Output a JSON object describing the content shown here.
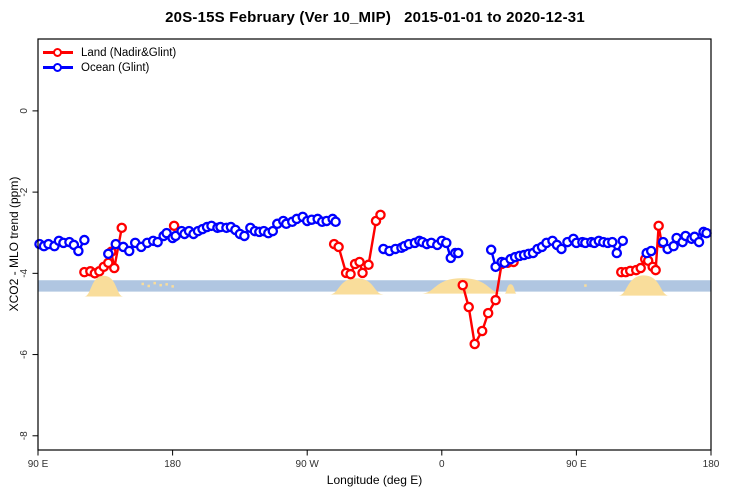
{
  "chart_data": {
    "type": "line",
    "title": "20S-15S February (Ver 10_MIP)   2015-01-01 to 2020-12-31",
    "xlabel": "Longitude (deg E)",
    "ylabel": "XCO2 - MLO trend (ppm)",
    "xlim": [
      90,
      540
    ],
    "ylim": [
      -8.35,
      1.77
    ],
    "grid": false,
    "legend_position": "top-left",
    "x_ticks": [
      {
        "value": 90,
        "label": "90 E"
      },
      {
        "value": 180,
        "label": "180"
      },
      {
        "value": 270,
        "label": "90 W"
      },
      {
        "value": 360,
        "label": "0"
      },
      {
        "value": 450,
        "label": "90 E"
      },
      {
        "value": 540,
        "label": "180"
      }
    ],
    "y_ticks": [
      {
        "value": 0,
        "label": "0"
      },
      {
        "value": -2,
        "label": "-2"
      },
      {
        "value": -4,
        "label": "-4"
      },
      {
        "value": -6,
        "label": "-6"
      },
      {
        "value": -8,
        "label": "-8"
      }
    ],
    "band": {
      "from": -4.17,
      "to": -4.45,
      "color": "#b0c6e1"
    },
    "land_shading": {
      "color": "#f9dd9b",
      "regions": [
        {
          "from": 121,
          "to": 147,
          "peak": -4.06,
          "base": -4.57
        },
        {
          "from": 285,
          "to": 321,
          "peak": -4.12,
          "base": -4.52
        },
        {
          "from": 346,
          "to": 401,
          "peak": -4.12,
          "base": -4.5
        },
        {
          "from": 402,
          "to": 410,
          "peak": -4.27,
          "base": -4.5
        },
        {
          "from": 478,
          "to": 512,
          "peak": -4.05,
          "base": -4.55
        }
      ],
      "speckles": [
        [
          160,
          -4.26
        ],
        [
          164,
          -4.31
        ],
        [
          168,
          -4.24
        ],
        [
          172,
          -4.29
        ],
        [
          176,
          -4.27
        ],
        [
          180,
          -4.32
        ],
        [
          456,
          -4.3
        ]
      ]
    },
    "series": [
      {
        "name": "Land (Nadir&Glint)",
        "color": "#ff0000",
        "marker": "open-circle",
        "segments": [
          [
            [
              121,
              -3.97
            ],
            [
              125,
              -3.95
            ],
            [
              128,
              -4.0
            ],
            [
              131,
              -3.95
            ],
            [
              134,
              -3.84
            ],
            [
              137,
              -3.74
            ],
            [
              139,
              -3.47
            ],
            [
              141,
              -3.87
            ],
            [
              146,
              -2.88
            ]
          ],
          [
            [
              181,
              -2.83
            ]
          ],
          [
            [
              288,
              -3.28
            ],
            [
              291,
              -3.35
            ],
            [
              296,
              -3.99
            ],
            [
              299,
              -4.02
            ],
            [
              302,
              -3.77
            ],
            [
              305,
              -3.72
            ],
            [
              307,
              -3.99
            ],
            [
              311,
              -3.79
            ],
            [
              316,
              -2.71
            ],
            [
              319,
              -2.56
            ]
          ],
          [
            [
              374,
              -4.29
            ],
            [
              378,
              -4.83
            ],
            [
              382,
              -5.74
            ],
            [
              387,
              -5.42
            ],
            [
              391,
              -4.98
            ],
            [
              396,
              -4.66
            ],
            [
              400,
              -3.77
            ],
            [
              404,
              -3.74
            ],
            [
              408,
              -3.72
            ]
          ],
          [
            [
              480,
              -3.97
            ],
            [
              483,
              -3.97
            ],
            [
              486,
              -3.94
            ],
            [
              490,
              -3.92
            ],
            [
              493,
              -3.87
            ],
            [
              496,
              -3.65
            ],
            [
              498,
              -3.69
            ],
            [
              501,
              -3.84
            ],
            [
              503,
              -3.92
            ],
            [
              505,
              -2.83
            ],
            [
              507,
              -3.25
            ]
          ]
        ]
      },
      {
        "name": "Ocean (Glint)",
        "color": "#0000ff",
        "marker": "open-circle",
        "segments": [
          [
            [
              91,
              -3.28
            ],
            [
              94,
              -3.33
            ],
            [
              97,
              -3.28
            ],
            [
              101,
              -3.33
            ],
            [
              104,
              -3.2
            ],
            [
              107,
              -3.25
            ],
            [
              111,
              -3.23
            ],
            [
              114,
              -3.3
            ],
            [
              117,
              -3.45
            ],
            [
              121,
              -3.18
            ]
          ],
          [
            [
              137,
              -3.52
            ],
            [
              142,
              -3.28
            ],
            [
              147,
              -3.35
            ],
            [
              151,
              -3.45
            ],
            [
              155,
              -3.25
            ],
            [
              159,
              -3.35
            ],
            [
              163,
              -3.25
            ],
            [
              167,
              -3.2
            ],
            [
              170,
              -3.23
            ],
            [
              174,
              -3.08
            ],
            [
              176,
              -3.01
            ],
            [
              180,
              -3.13
            ],
            [
              182,
              -3.08
            ],
            [
              186,
              -2.96
            ],
            [
              188,
              -3.03
            ],
            [
              191,
              -2.96
            ],
            [
              194,
              -3.03
            ],
            [
              197,
              -2.96
            ],
            [
              200,
              -2.91
            ],
            [
              203,
              -2.86
            ],
            [
              206,
              -2.83
            ],
            [
              210,
              -2.88
            ],
            [
              212,
              -2.86
            ],
            [
              216,
              -2.88
            ],
            [
              219,
              -2.86
            ],
            [
              222,
              -2.93
            ],
            [
              225,
              -3.03
            ],
            [
              228,
              -3.08
            ],
            [
              232,
              -2.88
            ],
            [
              235,
              -2.96
            ],
            [
              238,
              -2.98
            ],
            [
              241,
              -2.96
            ],
            [
              244,
              -3.01
            ],
            [
              247,
              -2.96
            ],
            [
              250,
              -2.78
            ],
            [
              254,
              -2.71
            ],
            [
              256,
              -2.78
            ],
            [
              260,
              -2.73
            ],
            [
              263,
              -2.66
            ],
            [
              267,
              -2.61
            ],
            [
              270,
              -2.71
            ],
            [
              273,
              -2.68
            ],
            [
              277,
              -2.66
            ],
            [
              280,
              -2.73
            ],
            [
              283,
              -2.71
            ],
            [
              287,
              -2.66
            ],
            [
              289,
              -2.73
            ]
          ],
          [
            [
              321,
              -3.4
            ],
            [
              325,
              -3.45
            ],
            [
              329,
              -3.4
            ],
            [
              333,
              -3.37
            ],
            [
              335,
              -3.33
            ],
            [
              338,
              -3.28
            ],
            [
              342,
              -3.25
            ],
            [
              345,
              -3.2
            ],
            [
              347,
              -3.23
            ],
            [
              350,
              -3.28
            ],
            [
              353,
              -3.25
            ],
            [
              357,
              -3.3
            ],
            [
              360,
              -3.2
            ],
            [
              363,
              -3.25
            ],
            [
              366,
              -3.62
            ],
            [
              369,
              -3.5
            ],
            [
              371,
              -3.5
            ]
          ],
          [
            [
              393,
              -3.42
            ],
            [
              396,
              -3.84
            ],
            [
              400,
              -3.72
            ],
            [
              402,
              -3.74
            ],
            [
              406,
              -3.65
            ],
            [
              409,
              -3.6
            ],
            [
              412,
              -3.57
            ],
            [
              415,
              -3.55
            ],
            [
              418,
              -3.52
            ],
            [
              421,
              -3.5
            ],
            [
              424,
              -3.4
            ],
            [
              427,
              -3.35
            ],
            [
              430,
              -3.25
            ],
            [
              434,
              -3.2
            ],
            [
              437,
              -3.3
            ],
            [
              440,
              -3.4
            ],
            [
              444,
              -3.23
            ],
            [
              448,
              -3.15
            ],
            [
              450,
              -3.25
            ],
            [
              454,
              -3.23
            ],
            [
              456,
              -3.25
            ],
            [
              460,
              -3.23
            ],
            [
              462,
              -3.25
            ],
            [
              465,
              -3.2
            ],
            [
              468,
              -3.23
            ],
            [
              471,
              -3.25
            ],
            [
              474,
              -3.23
            ],
            [
              477,
              -3.5
            ],
            [
              481,
              -3.2
            ]
          ],
          [
            [
              497,
              -3.5
            ],
            [
              500,
              -3.45
            ]
          ],
          [
            [
              508,
              -3.23
            ],
            [
              511,
              -3.4
            ],
            [
              515,
              -3.33
            ],
            [
              517,
              -3.13
            ],
            [
              521,
              -3.23
            ],
            [
              523,
              -3.08
            ],
            [
              527,
              -3.15
            ],
            [
              529,
              -3.1
            ],
            [
              532,
              -3.23
            ],
            [
              535,
              -2.98
            ],
            [
              537,
              -3.01
            ]
          ]
        ]
      }
    ]
  }
}
